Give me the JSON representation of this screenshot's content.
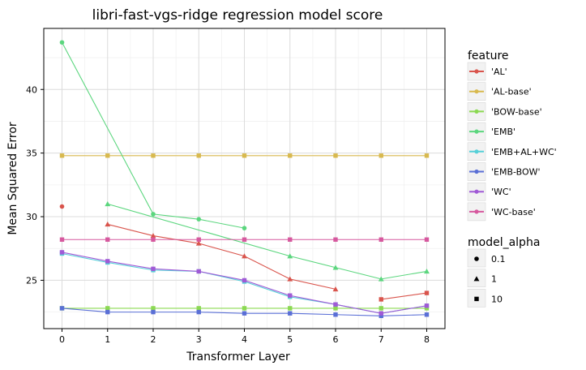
{
  "chart_data": {
    "type": "line",
    "title": "libri-fast-vgs-ridge regression model score",
    "xlabel": "Transformer Layer",
    "ylabel": "Mean Squared Error",
    "xlim": [
      -0.4,
      8.4
    ],
    "ylim": [
      21.2,
      44.8
    ],
    "x_ticks": [
      0,
      1,
      2,
      3,
      4,
      5,
      6,
      7,
      8
    ],
    "y_ticks": [
      25,
      30,
      35,
      40
    ],
    "grid": true,
    "legend_position": "right",
    "legend": {
      "color_title": "feature",
      "shape_title": "model_alpha",
      "shape_entries": [
        {
          "label": "0.1",
          "shape": "circle"
        },
        {
          "label": "1",
          "shape": "triangle"
        },
        {
          "label": "10",
          "shape": "square"
        }
      ]
    },
    "series": [
      {
        "name": "'AL'",
        "color": "#d9544c",
        "points": [
          {
            "x": 0,
            "y": 30.8,
            "alpha": "0.1"
          },
          {
            "x": 1,
            "y": 29.4,
            "alpha": "1"
          },
          {
            "x": 2,
            "y": 28.5,
            "alpha": "1"
          },
          {
            "x": 3,
            "y": 27.9,
            "alpha": "1"
          },
          {
            "x": 4,
            "y": 26.9,
            "alpha": "1"
          },
          {
            "x": 5,
            "y": 25.1,
            "alpha": "1"
          },
          {
            "x": 6,
            "y": 24.3,
            "alpha": "1"
          },
          {
            "x": 7,
            "y": 23.5,
            "alpha": "10"
          },
          {
            "x": 8,
            "y": 24.0,
            "alpha": "10"
          }
        ]
      },
      {
        "name": "'AL-base'",
        "color": "#d8b94e",
        "points": [
          {
            "x": 0,
            "y": 34.8,
            "alpha": "10"
          },
          {
            "x": 1,
            "y": 34.8,
            "alpha": "10"
          },
          {
            "x": 2,
            "y": 34.8,
            "alpha": "10"
          },
          {
            "x": 3,
            "y": 34.8,
            "alpha": "10"
          },
          {
            "x": 4,
            "y": 34.8,
            "alpha": "10"
          },
          {
            "x": 5,
            "y": 34.8,
            "alpha": "10"
          },
          {
            "x": 6,
            "y": 34.8,
            "alpha": "10"
          },
          {
            "x": 7,
            "y": 34.8,
            "alpha": "10"
          },
          {
            "x": 8,
            "y": 34.8,
            "alpha": "10"
          }
        ]
      },
      {
        "name": "'BOW-base'",
        "color": "#8bd952",
        "points": [
          {
            "x": 0,
            "y": 22.8,
            "alpha": "10"
          },
          {
            "x": 1,
            "y": 22.8,
            "alpha": "10"
          },
          {
            "x": 2,
            "y": 22.8,
            "alpha": "10"
          },
          {
            "x": 3,
            "y": 22.8,
            "alpha": "10"
          },
          {
            "x": 4,
            "y": 22.8,
            "alpha": "10"
          },
          {
            "x": 5,
            "y": 22.8,
            "alpha": "10"
          },
          {
            "x": 6,
            "y": 22.8,
            "alpha": "10"
          },
          {
            "x": 7,
            "y": 22.8,
            "alpha": "10"
          },
          {
            "x": 8,
            "y": 22.8,
            "alpha": "10"
          }
        ]
      },
      {
        "name": "'EMB'",
        "color": "#5bd67e",
        "points": [
          {
            "x": 0,
            "y": 43.7,
            "alpha": "0.1"
          },
          {
            "x": 1,
            "y": 31.0,
            "alpha": "1"
          },
          {
            "x": 2,
            "y": 30.2,
            "alpha": "0.1"
          },
          {
            "x": 3,
            "y": 29.8,
            "alpha": "0.1"
          },
          {
            "x": 4,
            "y": 29.1,
            "alpha": "0.1"
          },
          {
            "x": 5,
            "y": 26.9,
            "alpha": "1"
          },
          {
            "x": 6,
            "y": 26.0,
            "alpha": "1"
          },
          {
            "x": 7,
            "y": 25.1,
            "alpha": "1"
          },
          {
            "x": 8,
            "y": 25.7,
            "alpha": "1"
          }
        ]
      },
      {
        "name": "'EMB+AL+WC'",
        "color": "#56d0d8",
        "points": [
          {
            "x": 0,
            "y": 27.1,
            "alpha": "10"
          },
          {
            "x": 1,
            "y": 26.4,
            "alpha": "10"
          },
          {
            "x": 2,
            "y": 25.8,
            "alpha": "10"
          },
          {
            "x": 3,
            "y": 25.7,
            "alpha": "10"
          },
          {
            "x": 4,
            "y": 24.9,
            "alpha": "10"
          },
          {
            "x": 5,
            "y": 23.7,
            "alpha": "10"
          },
          {
            "x": 6,
            "y": 23.1,
            "alpha": "10"
          },
          {
            "x": 7,
            "y": 22.4,
            "alpha": "10"
          },
          {
            "x": 8,
            "y": 23.0,
            "alpha": "10"
          }
        ]
      },
      {
        "name": "'EMB-BOW'",
        "color": "#5a6fd6",
        "points": [
          {
            "x": 0,
            "y": 22.8,
            "alpha": "10"
          },
          {
            "x": 1,
            "y": 22.5,
            "alpha": "10"
          },
          {
            "x": 2,
            "y": 22.5,
            "alpha": "10"
          },
          {
            "x": 3,
            "y": 22.5,
            "alpha": "10"
          },
          {
            "x": 4,
            "y": 22.4,
            "alpha": "10"
          },
          {
            "x": 5,
            "y": 22.4,
            "alpha": "10"
          },
          {
            "x": 6,
            "y": 22.3,
            "alpha": "10"
          },
          {
            "x": 7,
            "y": 22.2,
            "alpha": "10"
          },
          {
            "x": 8,
            "y": 22.3,
            "alpha": "10"
          }
        ]
      },
      {
        "name": "'WC'",
        "color": "#a05ad6",
        "points": [
          {
            "x": 0,
            "y": 27.2,
            "alpha": "10"
          },
          {
            "x": 1,
            "y": 26.5,
            "alpha": "10"
          },
          {
            "x": 2,
            "y": 25.9,
            "alpha": "10"
          },
          {
            "x": 3,
            "y": 25.7,
            "alpha": "10"
          },
          {
            "x": 4,
            "y": 25.0,
            "alpha": "10"
          },
          {
            "x": 5,
            "y": 23.8,
            "alpha": "10"
          },
          {
            "x": 6,
            "y": 23.1,
            "alpha": "10"
          },
          {
            "x": 7,
            "y": 22.4,
            "alpha": "10"
          },
          {
            "x": 8,
            "y": 23.0,
            "alpha": "10"
          }
        ]
      },
      {
        "name": "'WC-base'",
        "color": "#d6589e",
        "points": [
          {
            "x": 0,
            "y": 28.2,
            "alpha": "10"
          },
          {
            "x": 1,
            "y": 28.2,
            "alpha": "10"
          },
          {
            "x": 2,
            "y": 28.2,
            "alpha": "10"
          },
          {
            "x": 3,
            "y": 28.2,
            "alpha": "10"
          },
          {
            "x": 4,
            "y": 28.2,
            "alpha": "10"
          },
          {
            "x": 5,
            "y": 28.2,
            "alpha": "10"
          },
          {
            "x": 6,
            "y": 28.2,
            "alpha": "10"
          },
          {
            "x": 7,
            "y": 28.2,
            "alpha": "10"
          },
          {
            "x": 8,
            "y": 28.2,
            "alpha": "10"
          }
        ]
      }
    ]
  }
}
